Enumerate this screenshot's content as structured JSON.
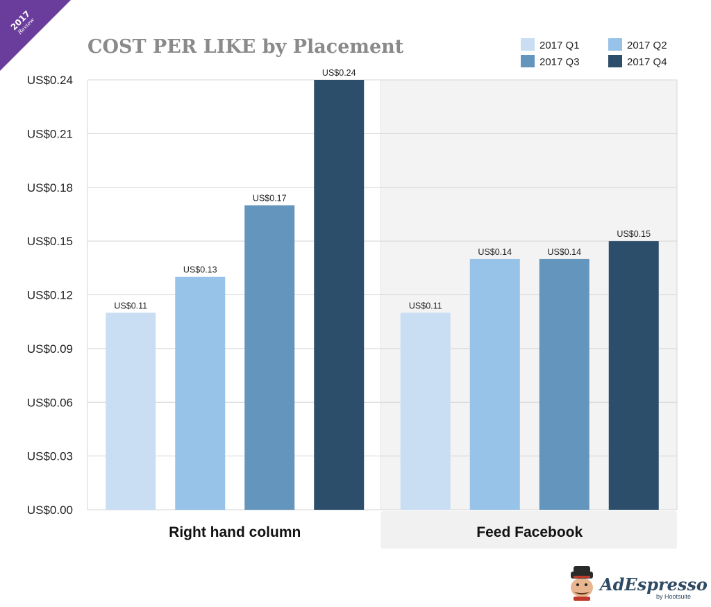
{
  "badge": {
    "year": "2017",
    "subtitle": "Review",
    "color": "#6a3c9c"
  },
  "logo": {
    "name": "AdEspresso",
    "byline": "by Hootsuite"
  },
  "chart_data": {
    "type": "bar",
    "title": "COST PER LIKE by Placement",
    "xlabel": "",
    "ylabel": "",
    "categories": [
      "Right hand column",
      "Feed Facebook"
    ],
    "series": [
      {
        "name": "2017 Q1",
        "color": "#c9def3",
        "values": [
          0.11,
          0.11
        ],
        "labels": [
          "US$0.11",
          "US$0.11"
        ]
      },
      {
        "name": "2017 Q2",
        "color": "#98c3e8",
        "values": [
          0.13,
          0.14
        ],
        "labels": [
          "US$0.13",
          "US$0.14"
        ]
      },
      {
        "name": "2017 Q3",
        "color": "#6495bd",
        "values": [
          0.17,
          0.14
        ],
        "labels": [
          "US$0.17",
          "US$0.14"
        ]
      },
      {
        "name": "2017 Q4",
        "color": "#2c4e6b",
        "values": [
          0.24,
          0.15
        ],
        "labels": [
          "US$0.24",
          "US$0.15"
        ]
      }
    ],
    "ylim": [
      0,
      0.24
    ],
    "yticks": [
      {
        "value": 0.0,
        "label": "US$0.00"
      },
      {
        "value": 0.03,
        "label": "US$0.03"
      },
      {
        "value": 0.06,
        "label": "US$0.06"
      },
      {
        "value": 0.09,
        "label": "US$0.09"
      },
      {
        "value": 0.12,
        "label": "US$0.12"
      },
      {
        "value": 0.15,
        "label": "US$0.15"
      },
      {
        "value": 0.18,
        "label": "US$0.18"
      },
      {
        "value": 0.21,
        "label": "US$0.21"
      },
      {
        "value": 0.24,
        "label": "US$0.24"
      }
    ],
    "grid": true,
    "legend": "top-right"
  }
}
